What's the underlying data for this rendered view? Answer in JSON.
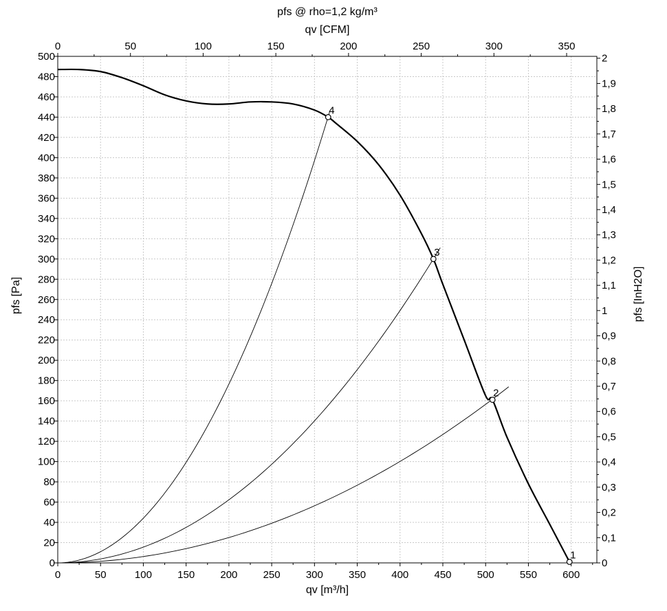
{
  "chart_data": {
    "type": "line",
    "title": "pfs @ rho=1,2 kg/m³",
    "xlabel": "qv [m³/h]",
    "x2label": "qv [CFM]",
    "ylabel": "pfs [Pa]",
    "y2label": "pfs [InH2O]",
    "xlim": [
      0,
      630
    ],
    "ylim": [
      0,
      500
    ],
    "x2lim": [
      0,
      370.8
    ],
    "y2lim": [
      0,
      2.0074
    ],
    "grid": true,
    "x_ticks": [
      "0",
      "50",
      "100",
      "150",
      "200",
      "250",
      "300",
      "350",
      "400",
      "450",
      "500",
      "550",
      "600"
    ],
    "y_ticks": [
      "0",
      "20",
      "40",
      "60",
      "80",
      "100",
      "120",
      "140",
      "160",
      "180",
      "200",
      "220",
      "240",
      "260",
      "280",
      "300",
      "320",
      "340",
      "360",
      "380",
      "400",
      "420",
      "440",
      "460",
      "480",
      "500"
    ],
    "x2_ticks": [
      "0",
      "50",
      "100",
      "150",
      "200",
      "250",
      "300",
      "350"
    ],
    "y2_ticks": [
      "0",
      "0,1",
      "0,2",
      "0,3",
      "0,4",
      "0,5",
      "0,6",
      "0,7",
      "0,8",
      "0,9",
      "1",
      "1,1",
      "1,2",
      "1,3",
      "1,4",
      "1,5",
      "1,6",
      "1,7",
      "1,8",
      "1,9",
      "2"
    ],
    "fan_curve": {
      "x": [
        0,
        25,
        50,
        75,
        100,
        125,
        150,
        175,
        200,
        225,
        250,
        275,
        300,
        316,
        325,
        350,
        375,
        400,
        425,
        439,
        450,
        475,
        500,
        508,
        525,
        550,
        575,
        598
      ],
      "y": [
        487,
        487,
        485,
        479,
        471,
        462,
        456,
        453,
        453,
        455,
        455,
        453,
        447,
        440,
        434,
        416,
        393,
        363,
        325,
        300,
        275,
        220,
        165,
        161,
        124,
        78,
        38,
        1
      ]
    },
    "system_curves": [
      {
        "label": "2",
        "kmax": 527,
        "k": 0.000626
      },
      {
        "label": "3",
        "kmax": 447,
        "k": 0.001557
      },
      {
        "label": "4",
        "kmax": 318,
        "k": 0.004412
      }
    ],
    "points": [
      {
        "label": "1",
        "x": 598,
        "y": 1
      },
      {
        "label": "2",
        "x": 508,
        "y": 161
      },
      {
        "label": "3",
        "x": 439,
        "y": 300
      },
      {
        "label": "4",
        "x": 316,
        "y": 440
      }
    ]
  }
}
